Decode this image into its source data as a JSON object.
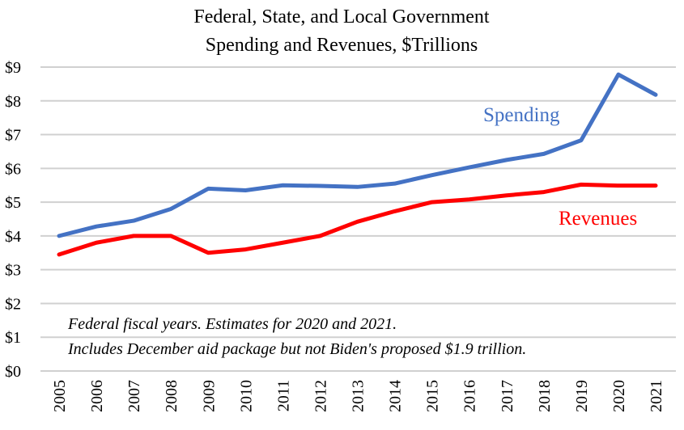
{
  "chart_data": {
    "type": "line",
    "title": [
      "Federal, State, and Local Government",
      "Spending and Revenues, $Trillions"
    ],
    "xlabel": "",
    "ylabel": "",
    "ylim": [
      0,
      9
    ],
    "yticks": [
      "$0",
      "$1",
      "$2",
      "$3",
      "$4",
      "$5",
      "$6",
      "$7",
      "$8",
      "$9"
    ],
    "grid": true,
    "categories": [
      "2005",
      "2006",
      "2007",
      "2008",
      "2009",
      "2010",
      "2011",
      "2012",
      "2013",
      "2014",
      "2015",
      "2016",
      "2017",
      "2018",
      "2019",
      "2020",
      "2021"
    ],
    "series": [
      {
        "name": "Spending",
        "color": "#4472C4",
        "values": [
          4.0,
          4.28,
          4.45,
          4.8,
          5.4,
          5.35,
          5.5,
          5.48,
          5.45,
          5.55,
          5.8,
          6.03,
          6.25,
          6.43,
          6.83,
          8.78,
          8.18
        ]
      },
      {
        "name": "Revenues",
        "color": "#FF0000",
        "values": [
          3.45,
          3.8,
          4.0,
          4.0,
          3.5,
          3.6,
          3.8,
          4.0,
          4.42,
          4.73,
          5.0,
          5.08,
          5.2,
          5.3,
          5.52,
          5.49,
          5.49
        ]
      }
    ],
    "annotations": [
      "Federal fiscal years. Estimates for 2020 and 2021.",
      "Includes December aid package but not Biden's proposed $1.9 trillion."
    ]
  }
}
